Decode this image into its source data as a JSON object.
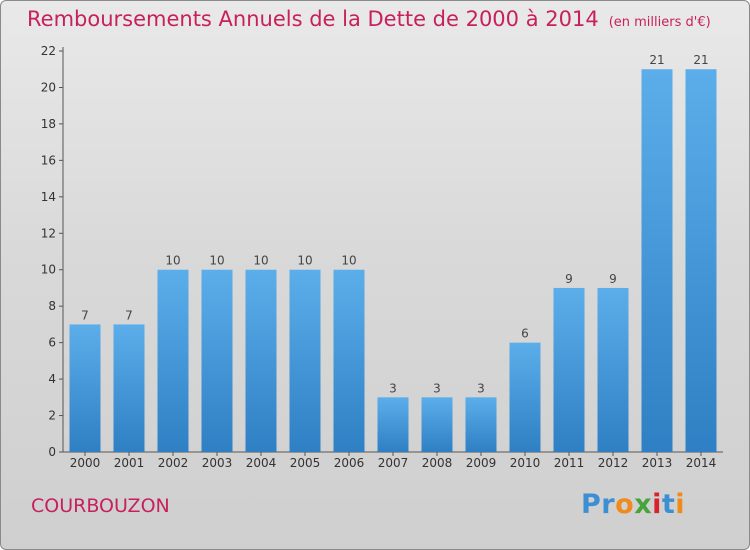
{
  "chart_data": {
    "type": "bar",
    "title": "Remboursements Annuels de la Dette de 2000 à 2014",
    "unit_label": "(en milliers d'€)",
    "categories": [
      "2000",
      "2001",
      "2002",
      "2003",
      "2004",
      "2005",
      "2006",
      "2007",
      "2008",
      "2009",
      "2010",
      "2011",
      "2012",
      "2013",
      "2014"
    ],
    "values": [
      7,
      7,
      10,
      10,
      10,
      10,
      10,
      3,
      3,
      3,
      6,
      9,
      9,
      21,
      21
    ],
    "value_labels": [
      "7",
      "7",
      "10",
      "10",
      "10",
      "10",
      "10",
      "3",
      "3",
      "3",
      "6",
      "9",
      "9",
      "21",
      "21"
    ],
    "ylim": [
      0,
      22
    ],
    "yticks": [
      "0",
      "2",
      "4",
      "6",
      "8",
      "10",
      "12",
      "14",
      "16",
      "18",
      "20",
      "22"
    ],
    "grid": false,
    "legend": "none",
    "bar_color": "#4d9fe0"
  },
  "footer": {
    "place_name": "COURBOUZON",
    "logo_letters": [
      "P",
      "r",
      "o",
      "x",
      "i",
      "t",
      "i"
    ]
  },
  "colors": {
    "title": "#c8205c",
    "logo": [
      "#3c8fd2",
      "#3c8fd2",
      "#ef8a1c",
      "#47a43a",
      "#d8222c",
      "#3c8fd2",
      "#ef8a1c"
    ]
  }
}
